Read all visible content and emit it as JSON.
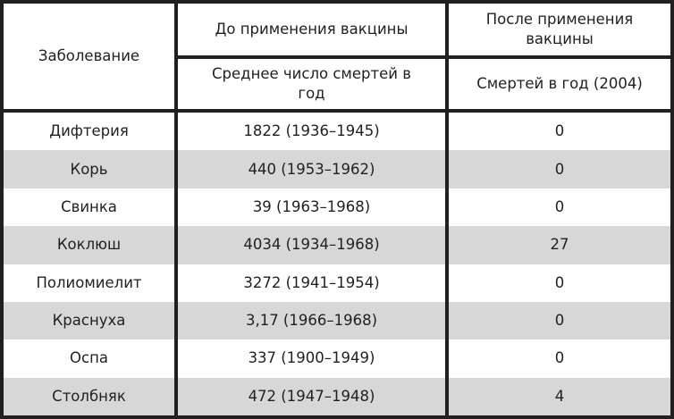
{
  "headers": {
    "disease": "Заболевание",
    "before": "До применения вакцины",
    "after": "После применения вакцины",
    "before_sub": "Среднее число смертей в год",
    "after_sub": "Смертей в год (2004)"
  },
  "rows": [
    {
      "disease": "Дифтерия",
      "before": "1822 (1936–1945)",
      "after": "0"
    },
    {
      "disease": "Корь",
      "before": "440 (1953–1962)",
      "after": "0"
    },
    {
      "disease": "Свинка",
      "before": "39 (1963–1968)",
      "after": "0"
    },
    {
      "disease": "Коклюш",
      "before": "4034 (1934–1968)",
      "after": "27"
    },
    {
      "disease": "Полиомиелит",
      "before": "3272 (1941–1954)",
      "after": "0"
    },
    {
      "disease": "Краснуха",
      "before": "3,17 (1966–1968)",
      "after": "0"
    },
    {
      "disease": "Оспа",
      "before": "337 (1900–1949)",
      "after": "0"
    },
    {
      "disease": "Столбняк",
      "before": "472 (1947–1948)",
      "after": "4"
    }
  ],
  "colors": {
    "border": "#231f20",
    "stripe": "#d7d7d7"
  }
}
